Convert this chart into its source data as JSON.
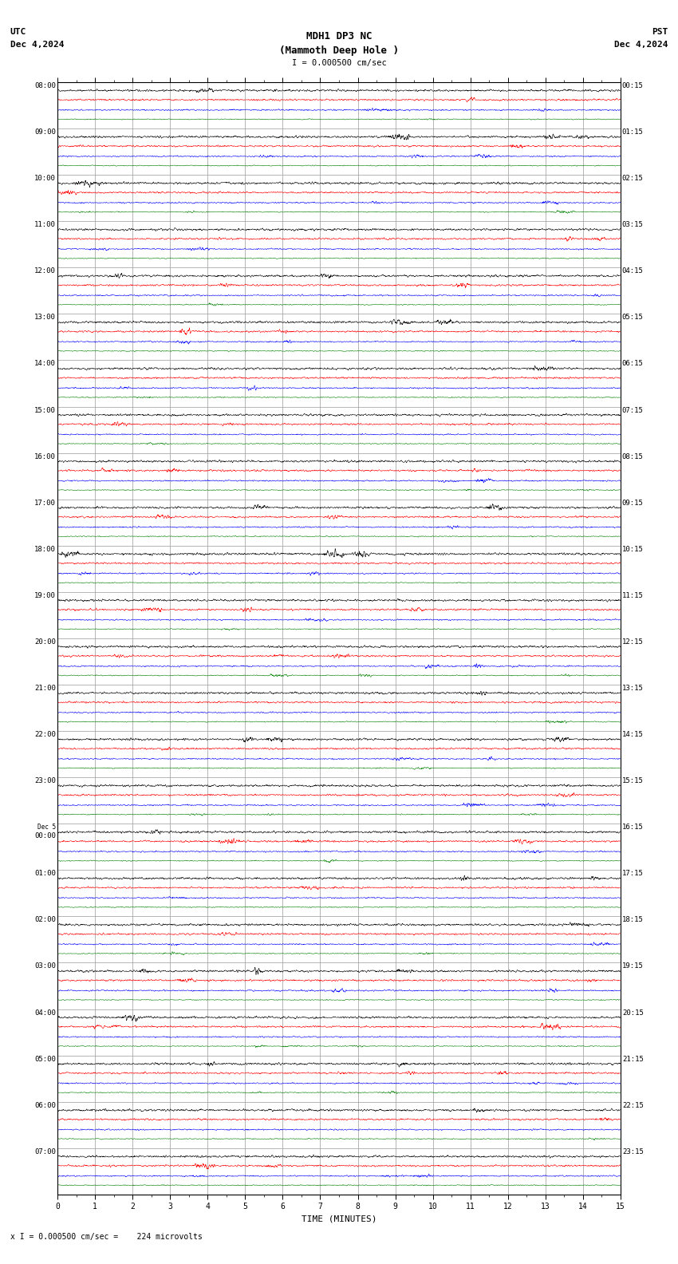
{
  "title_line1": "MDH1 DP3 NC",
  "title_line2": "(Mammoth Deep Hole )",
  "scale_label": "I = 0.000500 cm/sec",
  "bottom_label": "TIME (MINUTES)",
  "bottom_annotation": "x I = 0.000500 cm/sec =    224 microvolts",
  "utc_label": "UTC",
  "pst_label": "PST",
  "utc_date": "Dec 4,2024",
  "pst_date": "Dec 4,2024",
  "left_labels": [
    "08:00",
    "09:00",
    "10:00",
    "11:00",
    "12:00",
    "13:00",
    "14:00",
    "15:00",
    "16:00",
    "17:00",
    "18:00",
    "19:00",
    "20:00",
    "21:00",
    "22:00",
    "23:00",
    "Dec 5\n00:00",
    "01:00",
    "02:00",
    "03:00",
    "04:00",
    "05:00",
    "06:00",
    "07:00"
  ],
  "right_labels": [
    "00:15",
    "01:15",
    "02:15",
    "03:15",
    "04:15",
    "05:15",
    "06:15",
    "07:15",
    "08:15",
    "09:15",
    "10:15",
    "11:15",
    "12:15",
    "13:15",
    "14:15",
    "15:15",
    "16:15",
    "17:15",
    "18:15",
    "19:15",
    "20:15",
    "21:15",
    "22:15",
    "23:15"
  ],
  "n_rows": 24,
  "n_traces_per_row": 4,
  "trace_colors": [
    "black",
    "red",
    "blue",
    "green"
  ],
  "x_min": 0,
  "x_max": 15,
  "x_ticks": [
    0,
    1,
    2,
    3,
    4,
    5,
    6,
    7,
    8,
    9,
    10,
    11,
    12,
    13,
    14,
    15
  ],
  "fig_width": 8.5,
  "fig_height": 15.84,
  "bg_color": "#ffffff",
  "grid_color": "#999999",
  "noise_amplitude": [
    0.022,
    0.018,
    0.014,
    0.01
  ],
  "seed": 42
}
